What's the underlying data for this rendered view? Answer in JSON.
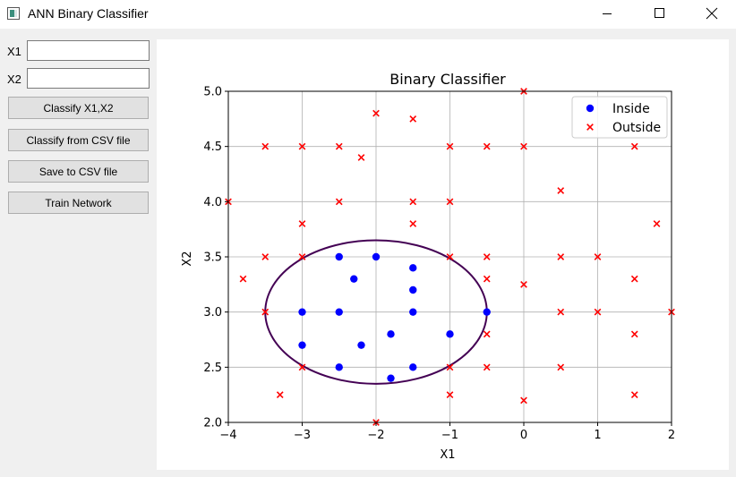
{
  "window": {
    "title": "ANN Binary Classifier",
    "controls": [
      "minimize",
      "maximize",
      "close"
    ]
  },
  "inputs": {
    "x1_label": "X1",
    "x1_value": "",
    "x2_label": "X2",
    "x2_value": ""
  },
  "buttons": {
    "classify": "Classify X1,X2",
    "classify_csv": "Classify from CSV file",
    "save_csv": "Save to CSV file",
    "train": "Train Network"
  },
  "colors": {
    "inside": "#0000ff",
    "outside": "#ff0000",
    "boundary": "#440154"
  },
  "chart_data": {
    "type": "scatter",
    "title": "Binary Classifier",
    "xlabel": "X1",
    "ylabel": "X2",
    "xlim": [
      -4,
      2
    ],
    "ylim": [
      2.0,
      5.0
    ],
    "xticks": [
      -4,
      -3,
      -2,
      -1,
      0,
      1,
      2
    ],
    "xtick_labels": [
      "−4",
      "−3",
      "−2",
      "−1",
      "0",
      "1",
      "2"
    ],
    "yticks": [
      2.0,
      2.5,
      3.0,
      3.5,
      4.0,
      4.5,
      5.0
    ],
    "ytick_labels": [
      "2.0",
      "2.5",
      "3.0",
      "3.5",
      "4.0",
      "4.5",
      "5.0"
    ],
    "grid": true,
    "legend_position": "top-right",
    "series": [
      {
        "name": "Inside",
        "marker": "circle",
        "points": [
          [
            -2.5,
            3.5
          ],
          [
            -2.0,
            3.5
          ],
          [
            -2.3,
            3.3
          ],
          [
            -1.5,
            3.4
          ],
          [
            -1.5,
            3.2
          ],
          [
            -3.0,
            3.0
          ],
          [
            -2.5,
            3.0
          ],
          [
            -1.5,
            3.0
          ],
          [
            -0.5,
            3.0
          ],
          [
            -1.8,
            2.8
          ],
          [
            -1.0,
            2.8
          ],
          [
            -3.0,
            2.7
          ],
          [
            -2.2,
            2.7
          ],
          [
            -2.5,
            2.5
          ],
          [
            -1.5,
            2.5
          ],
          [
            -1.8,
            2.4
          ]
        ]
      },
      {
        "name": "Outside",
        "marker": "x",
        "points": [
          [
            0,
            5.0
          ],
          [
            -2.0,
            4.8
          ],
          [
            -1.5,
            4.75
          ],
          [
            -3.5,
            4.5
          ],
          [
            -3.0,
            4.5
          ],
          [
            -2.5,
            4.5
          ],
          [
            -1.0,
            4.5
          ],
          [
            -0.5,
            4.5
          ],
          [
            0,
            4.5
          ],
          [
            1.5,
            4.5
          ],
          [
            -2.2,
            4.4
          ],
          [
            0.5,
            4.1
          ],
          [
            -4.0,
            4.0
          ],
          [
            -2.5,
            4.0
          ],
          [
            -1.5,
            4.0
          ],
          [
            -1.0,
            4.0
          ],
          [
            -3.0,
            3.8
          ],
          [
            -1.5,
            3.8
          ],
          [
            1.8,
            3.8
          ],
          [
            -3.5,
            3.5
          ],
          [
            -3.0,
            3.5
          ],
          [
            -1.0,
            3.5
          ],
          [
            -0.5,
            3.5
          ],
          [
            0.5,
            3.5
          ],
          [
            1.0,
            3.5
          ],
          [
            -3.8,
            3.3
          ],
          [
            -0.5,
            3.3
          ],
          [
            1.5,
            3.3
          ],
          [
            0,
            3.25
          ],
          [
            -3.5,
            3.0
          ],
          [
            0.5,
            3.0
          ],
          [
            1.0,
            3.0
          ],
          [
            2.0,
            3.0
          ],
          [
            -0.5,
            2.8
          ],
          [
            1.5,
            2.8
          ],
          [
            -3.0,
            2.5
          ],
          [
            -1.0,
            2.5
          ],
          [
            -0.5,
            2.5
          ],
          [
            0.5,
            2.5
          ],
          [
            -3.3,
            2.25
          ],
          [
            -1.0,
            2.25
          ],
          [
            1.5,
            2.25
          ],
          [
            0,
            2.2
          ],
          [
            -2.0,
            2.0
          ]
        ]
      }
    ],
    "decision_boundary": {
      "shape": "ellipse",
      "center": [
        -2.0,
        3.0
      ],
      "radius_x": 1.5,
      "radius_y": 0.65
    }
  }
}
